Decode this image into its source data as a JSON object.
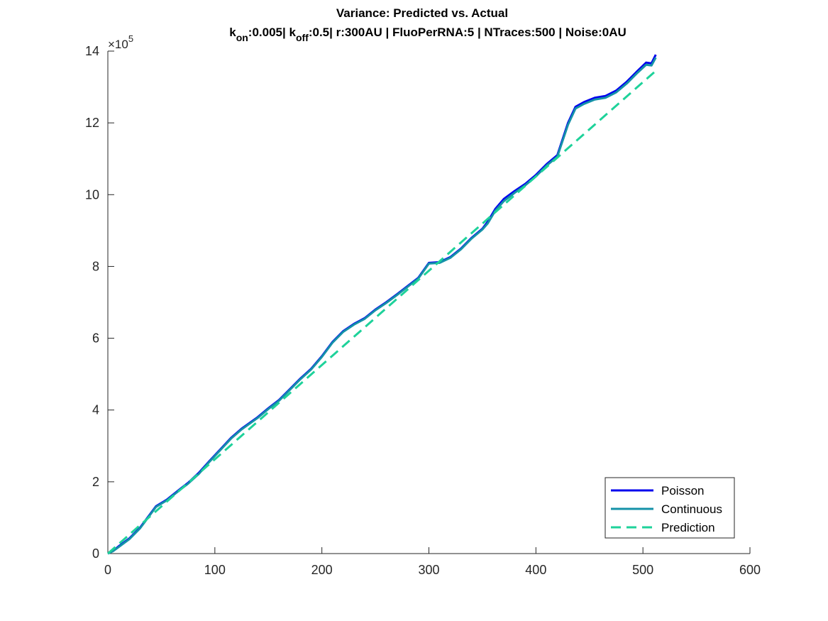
{
  "chart_data": {
    "type": "line",
    "title": "Variance: Predicted vs. Actual",
    "subtitle": {
      "parts": [
        {
          "text": "k",
          "sub": false
        },
        {
          "text": "on",
          "sub": true
        },
        {
          "text": ":0.005| k",
          "sub": false
        },
        {
          "text": "off",
          "sub": true
        },
        {
          "text": ":0.5| r:300AU | FluoPerRNA:5 | NTraces:500 | Noise:0AU",
          "sub": false
        }
      ]
    },
    "xlabel": "",
    "ylabel": "",
    "xlim": [
      0,
      600
    ],
    "ylim": [
      0,
      1400000
    ],
    "xticks": [
      0,
      100,
      200,
      300,
      400,
      500,
      600
    ],
    "yticks": [
      0,
      200000,
      400000,
      600000,
      800000,
      1000000,
      1200000,
      1400000
    ],
    "ytick_labels": [
      "0",
      "2",
      "4",
      "6",
      "8",
      "10",
      "12",
      "14"
    ],
    "y_exponent_label": {
      "base": "×10",
      "exp": "5"
    },
    "grid": false,
    "legend_position": "bottom-right",
    "series": [
      {
        "name": "Poisson",
        "color": "#0000ee",
        "style": "solid",
        "points": [
          [
            0,
            0
          ],
          [
            5,
            8000
          ],
          [
            10,
            20000
          ],
          [
            20,
            42000
          ],
          [
            30,
            72000
          ],
          [
            40,
            112000
          ],
          [
            45,
            132000
          ],
          [
            55,
            150000
          ],
          [
            65,
            174000
          ],
          [
            75,
            197000
          ],
          [
            85,
            225000
          ],
          [
            95,
            258000
          ],
          [
            105,
            290000
          ],
          [
            115,
            322000
          ],
          [
            125,
            348000
          ],
          [
            140,
            380000
          ],
          [
            150,
            405000
          ],
          [
            160,
            428000
          ],
          [
            170,
            458000
          ],
          [
            180,
            488000
          ],
          [
            190,
            515000
          ],
          [
            200,
            550000
          ],
          [
            210,
            590000
          ],
          [
            220,
            620000
          ],
          [
            230,
            640000
          ],
          [
            240,
            656000
          ],
          [
            250,
            680000
          ],
          [
            260,
            700000
          ],
          [
            270,
            722000
          ],
          [
            280,
            745000
          ],
          [
            290,
            768000
          ],
          [
            300,
            810000
          ],
          [
            310,
            812000
          ],
          [
            320,
            826000
          ],
          [
            330,
            850000
          ],
          [
            340,
            880000
          ],
          [
            350,
            905000
          ],
          [
            355,
            925000
          ],
          [
            362,
            960000
          ],
          [
            370,
            988000
          ],
          [
            380,
            1010000
          ],
          [
            390,
            1030000
          ],
          [
            400,
            1055000
          ],
          [
            410,
            1085000
          ],
          [
            420,
            1110000
          ],
          [
            430,
            1200000
          ],
          [
            437,
            1245000
          ],
          [
            445,
            1258000
          ],
          [
            455,
            1270000
          ],
          [
            465,
            1275000
          ],
          [
            475,
            1290000
          ],
          [
            485,
            1315000
          ],
          [
            495,
            1345000
          ],
          [
            503,
            1368000
          ],
          [
            508,
            1366000
          ],
          [
            512,
            1390000
          ]
        ]
      },
      {
        "name": "Continuous",
        "color": "#1592a8",
        "style": "solid",
        "points": [
          [
            0,
            0
          ],
          [
            5,
            7000
          ],
          [
            10,
            18000
          ],
          [
            20,
            40000
          ],
          [
            30,
            70000
          ],
          [
            40,
            110000
          ],
          [
            45,
            130000
          ],
          [
            55,
            148000
          ],
          [
            65,
            172000
          ],
          [
            75,
            195000
          ],
          [
            85,
            222000
          ],
          [
            95,
            256000
          ],
          [
            105,
            288000
          ],
          [
            115,
            320000
          ],
          [
            125,
            346000
          ],
          [
            140,
            378000
          ],
          [
            150,
            403000
          ],
          [
            160,
            426000
          ],
          [
            170,
            456000
          ],
          [
            180,
            486000
          ],
          [
            190,
            513000
          ],
          [
            200,
            548000
          ],
          [
            210,
            588000
          ],
          [
            220,
            618000
          ],
          [
            230,
            638000
          ],
          [
            240,
            654000
          ],
          [
            250,
            678000
          ],
          [
            260,
            698000
          ],
          [
            270,
            720000
          ],
          [
            280,
            743000
          ],
          [
            290,
            766000
          ],
          [
            300,
            808000
          ],
          [
            310,
            810000
          ],
          [
            320,
            824000
          ],
          [
            330,
            848000
          ],
          [
            340,
            878000
          ],
          [
            350,
            903000
          ],
          [
            355,
            920000
          ],
          [
            362,
            955000
          ],
          [
            370,
            982000
          ],
          [
            380,
            1005000
          ],
          [
            390,
            1026000
          ],
          [
            400,
            1051000
          ],
          [
            410,
            1081000
          ],
          [
            420,
            1106000
          ],
          [
            430,
            1195000
          ],
          [
            437,
            1240000
          ],
          [
            445,
            1253000
          ],
          [
            455,
            1265000
          ],
          [
            465,
            1270000
          ],
          [
            475,
            1285000
          ],
          [
            485,
            1310000
          ],
          [
            495,
            1340000
          ],
          [
            503,
            1362000
          ],
          [
            508,
            1360000
          ],
          [
            512,
            1382000
          ]
        ]
      },
      {
        "name": "Prediction",
        "color": "#1ed29a",
        "style": "dashed",
        "points": [
          [
            0,
            0
          ],
          [
            512,
            1345000
          ]
        ]
      }
    ]
  }
}
